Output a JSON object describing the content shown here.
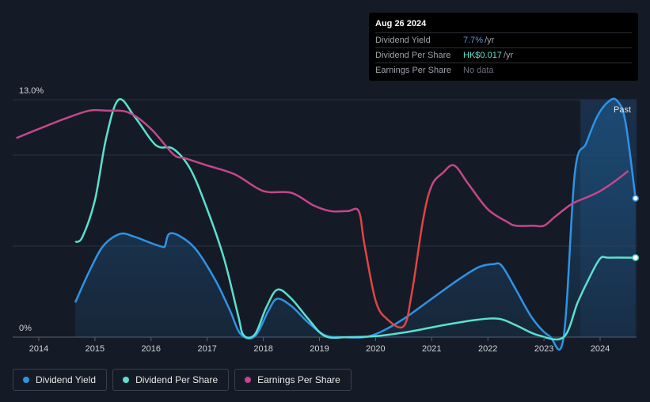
{
  "tooltip": {
    "date": "Aug 26 2024",
    "rows": [
      {
        "label": "Dividend Yield",
        "value": "7.7%",
        "unit": "/yr"
      },
      {
        "label": "Dividend Per Share",
        "value": "HK$0.017",
        "unit": "/yr"
      },
      {
        "label": "Earnings Per Share",
        "value": "No data",
        "unit": ""
      }
    ]
  },
  "colors": {
    "background": "#151b26",
    "dividend_yield": "#2e93e6",
    "dividend_per_share": "#5be0cf",
    "earnings_per_share": "#c4478a",
    "earnings_negative": "#e04444",
    "past_region": "#1a3350"
  },
  "legend": [
    {
      "label": "Dividend Yield",
      "color": "#2e93e6"
    },
    {
      "label": "Dividend Per Share",
      "color": "#5be0cf"
    },
    {
      "label": "Earnings Per Share",
      "color": "#c4478a"
    }
  ],
  "chart_data": {
    "type": "line",
    "y_axis": {
      "min": 0,
      "max": 13,
      "top_label": "13.0%",
      "bottom_label": "0%",
      "grid": true
    },
    "past_label": "Past",
    "past_start": 2023.65,
    "x_ticks": [
      "2014",
      "2015",
      "2016",
      "2017",
      "2018",
      "2019",
      "2020",
      "2021",
      "2022",
      "2023",
      "2024"
    ],
    "x_range": [
      2013.6,
      2024.65
    ],
    "series": [
      {
        "name": "Dividend Yield",
        "color": "#2e93e6",
        "fill": true,
        "points": [
          [
            2014.65,
            1.9
          ],
          [
            2014.9,
            3.6
          ],
          [
            2015.15,
            5.0
          ],
          [
            2015.45,
            5.65
          ],
          [
            2015.7,
            5.5
          ],
          [
            2016.0,
            5.15
          ],
          [
            2016.2,
            4.95
          ],
          [
            2016.25,
            5.0
          ],
          [
            2016.32,
            5.65
          ],
          [
            2016.5,
            5.55
          ],
          [
            2016.8,
            4.8
          ],
          [
            2017.15,
            3.1
          ],
          [
            2017.4,
            1.5
          ],
          [
            2017.6,
            0.15
          ],
          [
            2017.85,
            0.05
          ],
          [
            2018.1,
            1.5
          ],
          [
            2018.25,
            2.1
          ],
          [
            2018.5,
            1.7
          ],
          [
            2018.8,
            0.8
          ],
          [
            2019.1,
            0.1
          ],
          [
            2019.4,
            0
          ],
          [
            2019.8,
            0
          ],
          [
            2020.1,
            0.3
          ],
          [
            2020.5,
            1.0
          ],
          [
            2021.0,
            2.1
          ],
          [
            2021.5,
            3.2
          ],
          [
            2021.85,
            3.85
          ],
          [
            2022.1,
            4.0
          ],
          [
            2022.25,
            3.9
          ],
          [
            2022.5,
            2.6
          ],
          [
            2022.8,
            1.0
          ],
          [
            2023.1,
            0.05
          ],
          [
            2023.35,
            0
          ],
          [
            2023.55,
            9.0
          ],
          [
            2023.75,
            10.6
          ],
          [
            2023.95,
            12.1
          ],
          [
            2024.15,
            12.9
          ],
          [
            2024.3,
            12.95
          ],
          [
            2024.45,
            11.8
          ],
          [
            2024.63,
            7.6
          ]
        ]
      },
      {
        "name": "Dividend Per Share",
        "color": "#5be0cf",
        "fill": false,
        "points": [
          [
            2014.65,
            5.2
          ],
          [
            2014.78,
            5.5
          ],
          [
            2015.0,
            7.5
          ],
          [
            2015.2,
            10.9
          ],
          [
            2015.42,
            13.0
          ],
          [
            2015.7,
            12.1
          ],
          [
            2016.0,
            10.8
          ],
          [
            2016.15,
            10.4
          ],
          [
            2016.4,
            10.3
          ],
          [
            2016.7,
            9.2
          ],
          [
            2017.0,
            7.0
          ],
          [
            2017.3,
            4.3
          ],
          [
            2017.55,
            1.2
          ],
          [
            2017.65,
            0.1
          ],
          [
            2017.85,
            0.15
          ],
          [
            2018.05,
            1.6
          ],
          [
            2018.25,
            2.6
          ],
          [
            2018.5,
            2.1
          ],
          [
            2018.8,
            1.0
          ],
          [
            2019.1,
            0.05
          ],
          [
            2019.5,
            0
          ],
          [
            2020.0,
            0.05
          ],
          [
            2020.6,
            0.3
          ],
          [
            2021.2,
            0.65
          ],
          [
            2021.8,
            0.95
          ],
          [
            2022.2,
            1.0
          ],
          [
            2022.5,
            0.65
          ],
          [
            2022.9,
            0.1
          ],
          [
            2023.35,
            0
          ],
          [
            2023.6,
            1.9
          ],
          [
            2023.8,
            3.2
          ],
          [
            2024.0,
            4.3
          ],
          [
            2024.15,
            4.35
          ],
          [
            2024.63,
            4.35
          ]
        ]
      },
      {
        "name": "Earnings Per Share",
        "color": "#c4478a",
        "negative_color": "#e04444",
        "fill": false,
        "points": [
          [
            2013.6,
            10.9
          ],
          [
            2014.0,
            11.4
          ],
          [
            2014.5,
            12.0
          ],
          [
            2014.9,
            12.4
          ],
          [
            2015.2,
            12.4
          ],
          [
            2015.6,
            12.3
          ],
          [
            2016.0,
            11.4
          ],
          [
            2016.4,
            10.0
          ],
          [
            2016.6,
            9.8
          ],
          [
            2017.0,
            9.4
          ],
          [
            2017.5,
            8.9
          ],
          [
            2018.0,
            8.0
          ],
          [
            2018.5,
            7.9
          ],
          [
            2018.9,
            7.2
          ],
          [
            2019.2,
            6.9
          ],
          [
            2019.5,
            6.9
          ],
          [
            2019.7,
            6.9
          ],
          [
            2019.8,
            5.1
          ],
          [
            2020.0,
            2.0
          ],
          [
            2020.2,
            1.0
          ],
          [
            2020.5,
            0.6
          ],
          [
            2020.65,
            2.5
          ],
          [
            2020.85,
            6.5
          ],
          [
            2021.0,
            8.3
          ],
          [
            2021.2,
            9.0
          ],
          [
            2021.4,
            9.4
          ],
          [
            2021.65,
            8.4
          ],
          [
            2022.0,
            7.0
          ],
          [
            2022.35,
            6.3
          ],
          [
            2022.5,
            6.1
          ],
          [
            2022.8,
            6.1
          ],
          [
            2023.0,
            6.1
          ],
          [
            2023.2,
            6.6
          ],
          [
            2023.5,
            7.3
          ],
          [
            2023.8,
            7.7
          ],
          [
            2024.0,
            8.0
          ],
          [
            2024.25,
            8.5
          ],
          [
            2024.5,
            9.1
          ]
        ]
      }
    ]
  }
}
